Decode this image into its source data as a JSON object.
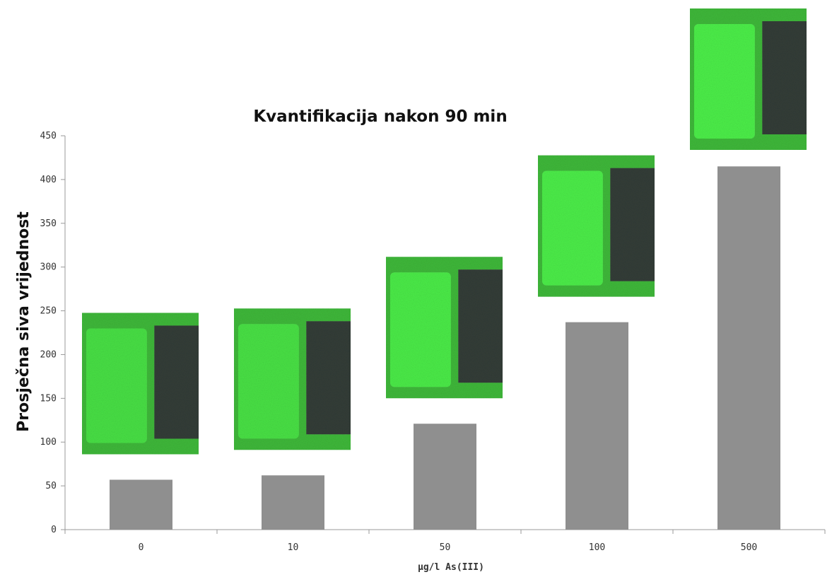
{
  "chart_data": {
    "type": "bar",
    "title": "Kvantifikacija nakon 90 min",
    "xlabel": "µg/l As(III)",
    "ylabel": "Prosječna siva vrijednost",
    "categories": [
      "0",
      "10",
      "50",
      "100",
      "500"
    ],
    "values": [
      57,
      62,
      121,
      237,
      415
    ],
    "ylim": [
      0,
      450
    ],
    "yticks": [
      "0",
      "50",
      "100",
      "150",
      "200",
      "250",
      "300",
      "350",
      "400",
      "450"
    ],
    "grid": false,
    "legend": "none",
    "bar_color": "#8f8f8f",
    "thumbnail_colors": {
      "background": "#3fb83a",
      "bright_pad": "#4df04a",
      "dark_pad": "#333d38"
    },
    "thumbnail_brightness": [
      0.35,
      0.4,
      0.8,
      0.88,
      0.95
    ]
  }
}
